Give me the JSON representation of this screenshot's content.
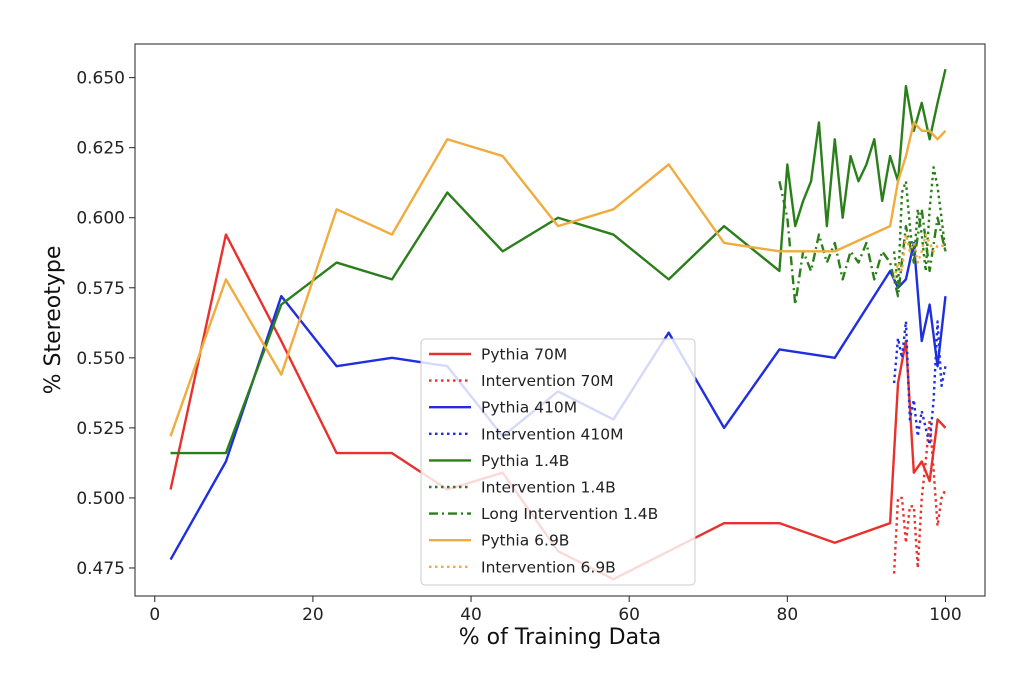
{
  "chart_data": {
    "type": "line",
    "title": "",
    "xlabel": "% of Training Data",
    "ylabel": "% Stereotype",
    "xlim": [
      -2.5,
      105
    ],
    "ylim": [
      0.465,
      0.662
    ],
    "xticks": [
      0,
      20,
      40,
      60,
      80,
      100
    ],
    "xtick_labels": [
      "0",
      "20",
      "40",
      "60",
      "80",
      "100"
    ],
    "yticks": [
      0.475,
      0.5,
      0.525,
      0.55,
      0.575,
      0.6,
      0.625,
      0.65
    ],
    "ytick_labels": [
      "0.475",
      "0.500",
      "0.525",
      "0.550",
      "0.575",
      "0.600",
      "0.625",
      "0.650"
    ],
    "grid": false,
    "legend_position": "lower-center",
    "colors": {
      "red": "#e8312c",
      "blue": "#1f2ee0",
      "green": "#2b7f1a",
      "orange": "#f0ac3e"
    },
    "series": [
      {
        "name": "Pythia 70M",
        "color": "#e8312c",
        "style": "solid",
        "x": [
          2,
          9,
          16,
          23,
          30,
          37,
          44,
          51,
          58,
          65,
          72,
          79,
          86,
          93,
          94,
          95,
          96,
          97,
          98,
          99,
          100
        ],
        "y": [
          0.503,
          0.594,
          0.556,
          0.516,
          0.516,
          0.503,
          0.509,
          0.481,
          0.471,
          0.481,
          0.491,
          0.491,
          0.484,
          0.491,
          0.541,
          0.556,
          0.509,
          0.513,
          0.506,
          0.528,
          0.525
        ]
      },
      {
        "name": "Intervention 70M",
        "color": "#e8312c",
        "style": "dotted",
        "x": [
          93.5,
          94,
          94.5,
          95,
          95.5,
          96,
          96.5,
          97,
          97.5,
          98,
          98.5,
          99,
          99.5,
          100
        ],
        "y": [
          0.473,
          0.5,
          0.5,
          0.484,
          0.497,
          0.497,
          0.475,
          0.5,
          0.513,
          0.528,
          0.51,
          0.49,
          0.5,
          0.503
        ]
      },
      {
        "name": "Pythia 410M",
        "color": "#1f2ee0",
        "style": "solid",
        "x": [
          2,
          9,
          16,
          23,
          30,
          37,
          44,
          51,
          58,
          65,
          72,
          79,
          86,
          93,
          94,
          95,
          96,
          97,
          98,
          99,
          100
        ],
        "y": [
          0.478,
          0.513,
          0.572,
          0.547,
          0.55,
          0.547,
          0.522,
          0.538,
          0.528,
          0.559,
          0.525,
          0.553,
          0.55,
          0.581,
          0.575,
          0.578,
          0.591,
          0.556,
          0.569,
          0.547,
          0.572
        ]
      },
      {
        "name": "Intervention 410M",
        "color": "#1f2ee0",
        "style": "dotted",
        "x": [
          93.5,
          94,
          94.5,
          95,
          95.5,
          96,
          96.5,
          97,
          97.5,
          98,
          98.5,
          99,
          99.5,
          100
        ],
        "y": [
          0.541,
          0.557,
          0.55,
          0.563,
          0.528,
          0.535,
          0.522,
          0.531,
          0.525,
          0.519,
          0.535,
          0.563,
          0.54,
          0.547
        ]
      },
      {
        "name": "Pythia 1.4B",
        "color": "#2b7f1a",
        "style": "solid",
        "x": [
          2,
          9,
          16,
          23,
          30,
          37,
          44,
          51,
          58,
          65,
          72,
          79,
          80,
          81,
          82,
          83,
          84,
          85,
          86,
          87,
          88,
          89,
          90,
          91,
          92,
          93,
          94,
          95,
          96,
          97,
          98,
          99,
          100
        ],
        "y": [
          0.516,
          0.516,
          0.569,
          0.584,
          0.578,
          0.609,
          0.588,
          0.6,
          0.594,
          0.578,
          0.597,
          0.581,
          0.619,
          0.597,
          0.606,
          0.613,
          0.634,
          0.597,
          0.628,
          0.6,
          0.622,
          0.613,
          0.619,
          0.628,
          0.606,
          0.622,
          0.613,
          0.647,
          0.631,
          0.641,
          0.628,
          0.641,
          0.653
        ]
      },
      {
        "name": "Intervention 1.4B",
        "color": "#2b7f1a",
        "style": "dotted",
        "x": [
          93.5,
          94,
          94.5,
          95,
          95.5,
          96,
          96.5,
          97,
          97.5,
          98,
          98.5,
          99,
          99.5,
          100
        ],
        "y": [
          0.588,
          0.575,
          0.609,
          0.613,
          0.597,
          0.584,
          0.603,
          0.594,
          0.581,
          0.603,
          0.618,
          0.611,
          0.6,
          0.588
        ]
      },
      {
        "name": "Long Intervention 1.4B",
        "color": "#2b7f1a",
        "style": "dashdot",
        "x": [
          79,
          80,
          81,
          82,
          83,
          84,
          85,
          86,
          87,
          88,
          89,
          90,
          91,
          92,
          93,
          94,
          95,
          96,
          97,
          98,
          99,
          100
        ],
        "y": [
          0.613,
          0.6,
          0.569,
          0.588,
          0.581,
          0.594,
          0.584,
          0.591,
          0.578,
          0.588,
          0.584,
          0.591,
          0.578,
          0.588,
          0.584,
          0.572,
          0.597,
          0.584,
          0.603,
          0.581,
          0.6,
          0.588
        ]
      },
      {
        "name": "Pythia 6.9B",
        "color": "#f0ac3e",
        "style": "solid",
        "x": [
          2,
          9,
          16,
          23,
          30,
          37,
          44,
          51,
          58,
          65,
          72,
          79,
          86,
          93,
          94,
          95,
          96,
          97,
          98,
          99,
          100
        ],
        "y": [
          0.522,
          0.578,
          0.544,
          0.603,
          0.594,
          0.628,
          0.622,
          0.597,
          0.603,
          0.619,
          0.591,
          0.588,
          0.588,
          0.597,
          0.613,
          0.622,
          0.634,
          0.631,
          0.631,
          0.628,
          0.631
        ]
      },
      {
        "name": "Intervention 6.9B",
        "color": "#f0ac3e",
        "style": "dotted",
        "x": [
          93.5,
          94,
          94.5,
          95,
          95.5,
          96,
          96.5,
          97,
          97.5,
          98,
          98.5,
          99,
          99.5,
          100
        ],
        "y": [
          0.578,
          0.584,
          0.581,
          0.594,
          0.588,
          0.591,
          0.584,
          0.588,
          0.594,
          0.591,
          0.588,
          0.59,
          0.59,
          0.59
        ]
      }
    ]
  }
}
